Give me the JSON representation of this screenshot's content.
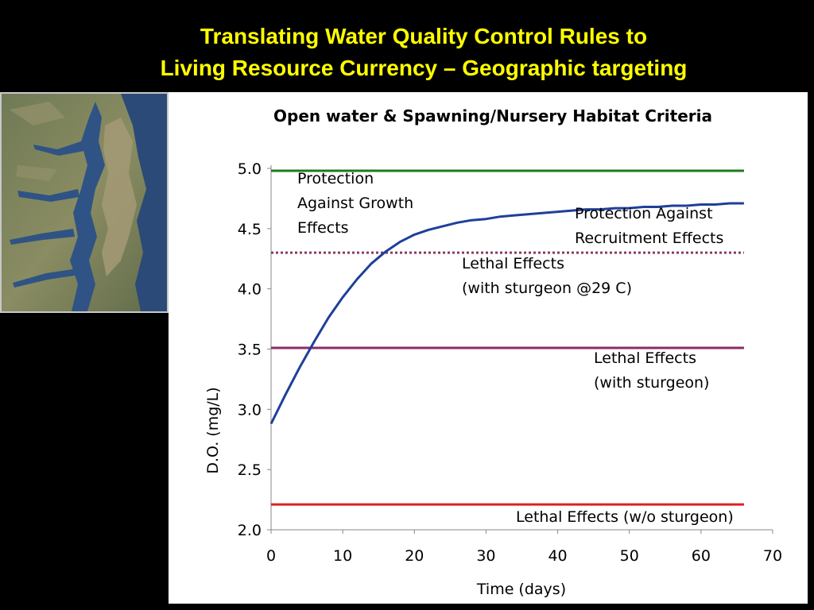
{
  "slide": {
    "title_line1": "Translating Water Quality Control Rules to",
    "title_line2": "Living Resource Currency – Geographic targeting",
    "title_color": "#ffff00",
    "background": "#000000"
  },
  "map": {
    "description_icon": "chesapeake-bay-satellite-map"
  },
  "chart_data": {
    "type": "line",
    "title": "Open water & Spawning/Nursery Habitat Criteria",
    "xlabel": "Time (days)",
    "ylabel": "D.O. (mg/L)",
    "xlim": [
      0,
      70
    ],
    "ylim": [
      2.0,
      5.0
    ],
    "xticks": [
      0,
      10,
      20,
      30,
      40,
      50,
      60,
      70
    ],
    "yticks": [
      "2.0",
      "2.5",
      "3.0",
      "3.5",
      "4.0",
      "4.5",
      "5.0"
    ],
    "grid": false,
    "series": [
      {
        "color": "#1f3f99",
        "x": [
          0,
          2,
          4,
          6,
          8,
          10,
          12,
          14,
          16,
          18,
          20,
          22,
          24,
          26,
          28,
          30,
          32,
          34,
          36,
          38,
          40,
          42,
          44,
          46,
          48,
          50,
          52,
          54,
          56,
          58,
          60,
          62,
          64,
          66
        ],
        "y": [
          2.88,
          3.12,
          3.35,
          3.56,
          3.76,
          3.93,
          4.08,
          4.21,
          4.31,
          4.39,
          4.45,
          4.49,
          4.52,
          4.55,
          4.57,
          4.58,
          4.6,
          4.61,
          4.62,
          4.63,
          4.64,
          4.65,
          4.66,
          4.66,
          4.67,
          4.67,
          4.68,
          4.68,
          4.69,
          4.69,
          4.7,
          4.7,
          4.71,
          4.71
        ]
      }
    ],
    "hlines": [
      {
        "y": 4.98,
        "color": "#1f7a1f",
        "style": "solid"
      },
      {
        "y": 4.3,
        "color": "#8b3a62",
        "style": "dotted"
      },
      {
        "y": 3.51,
        "color": "#8b2a6a",
        "style": "solid"
      },
      {
        "y": 2.21,
        "color": "#e02020",
        "style": "solid"
      }
    ],
    "annotations": [
      {
        "lines": [
          "Protection",
          "Against Growth",
          "Effects"
        ]
      },
      {
        "lines": [
          "Protection Against",
          "Recruitment Effects"
        ]
      },
      {
        "lines": [
          "Lethal Effects",
          "(with sturgeon @29 C)"
        ]
      },
      {
        "lines": [
          "Lethal Effects",
          "(with sturgeon)"
        ]
      },
      {
        "lines": [
          "Lethal Effects (w/o sturgeon)"
        ]
      }
    ]
  }
}
